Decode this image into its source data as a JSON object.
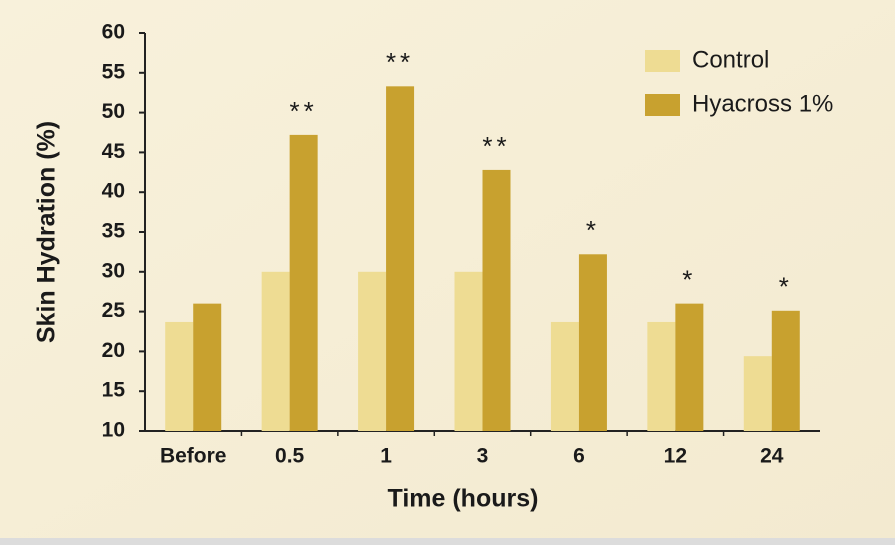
{
  "chart_data": {
    "type": "bar",
    "xlabel": "Time (hours)",
    "ylabel": "Skin Hydration (%)",
    "categories": [
      "Before",
      "0.5",
      "1",
      "3",
      "6",
      "12",
      "24"
    ],
    "series": [
      {
        "name": "Control",
        "color": "#eedc93",
        "values": [
          23.7,
          30,
          30,
          30,
          23.7,
          23.7,
          19.4
        ]
      },
      {
        "name": "Hyacross 1%",
        "color": "#c8a12f",
        "values": [
          26,
          47.2,
          53.3,
          42.8,
          32.2,
          26,
          25.1
        ]
      }
    ],
    "significance": [
      null,
      "**",
      "**",
      "**",
      "*",
      "*",
      "*"
    ],
    "ylim": [
      10,
      60
    ],
    "yticks": [
      10,
      15,
      20,
      25,
      30,
      35,
      40,
      45,
      50,
      55,
      60
    ],
    "legend": "top-right"
  }
}
